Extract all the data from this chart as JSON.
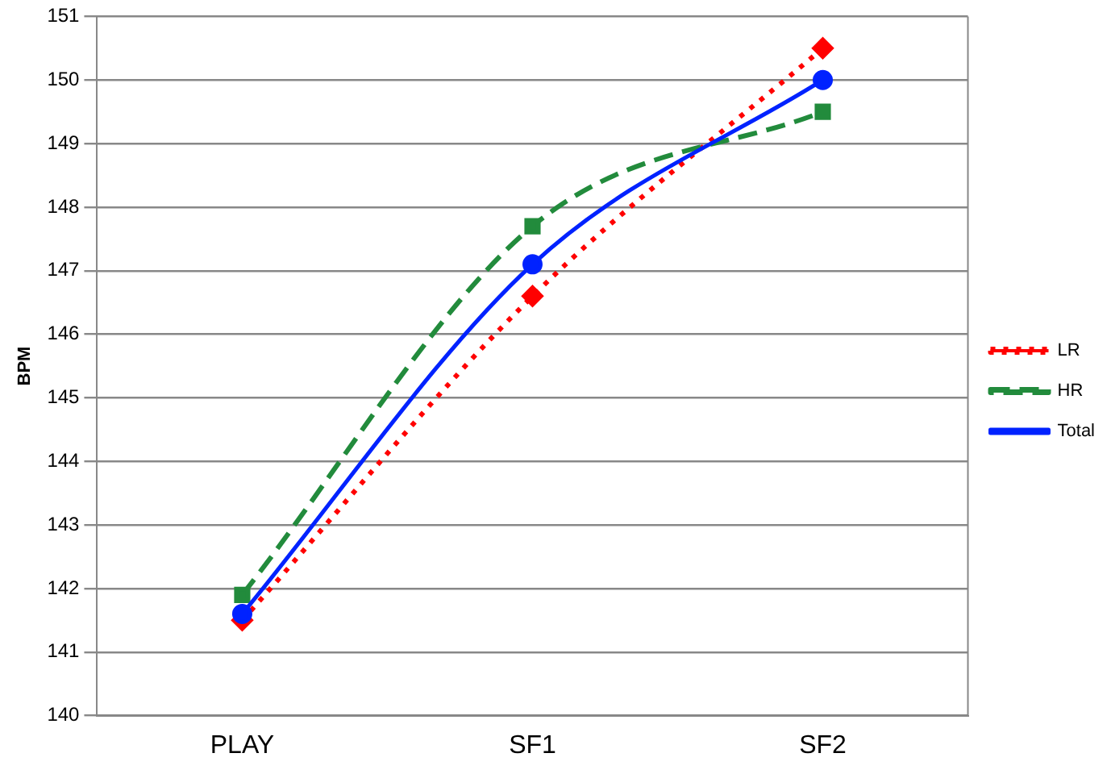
{
  "chart_data": {
    "type": "line",
    "ylabel": "BPM",
    "categories": [
      "PLAY",
      "SF1",
      "SF2"
    ],
    "series": [
      {
        "name": "LR",
        "color": "#ff0000",
        "values": [
          141.5,
          146.6,
          150.5
        ],
        "marker": "diamond",
        "line_style": "dotted"
      },
      {
        "name": "HR",
        "color": "#228b3c",
        "values": [
          141.9,
          147.7,
          149.5
        ],
        "marker": "square",
        "line_style": "dashed"
      },
      {
        "name": "Total",
        "color": "#0022ff",
        "values": [
          141.6,
          147.1,
          150.0
        ],
        "marker": "circle",
        "line_style": "solid"
      }
    ],
    "ylim": [
      140,
      151
    ],
    "yticks": [
      140,
      141,
      142,
      143,
      144,
      145,
      146,
      147,
      148,
      149,
      150,
      151
    ],
    "grid": "y",
    "legend": "right"
  }
}
